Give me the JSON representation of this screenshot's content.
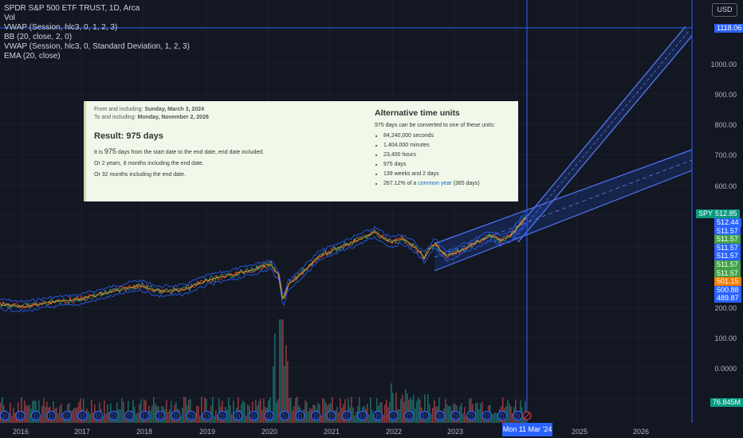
{
  "legend": {
    "symbol": "SPDR S&P 500 ETF TRUST, 1D, Arca",
    "lines": [
      "Vol",
      "VWAP (Session, hlc3, 0, 1, 2, 3)",
      "BB (20, close, 2, 0)",
      "VWAP (Session, hlc3, 0, Standard Deviation, 1, 2, 3)",
      "EMA (20, close)"
    ]
  },
  "currency_button": "USD",
  "price_axis": {
    "labels": [
      "1000.00",
      "900.00",
      "800.00",
      "700.00",
      "600.00",
      "200.00",
      "100.00",
      "0.0000"
    ],
    "top_tag": "1118.06",
    "ticker_tag": "SPY",
    "ticker_price": "512.85",
    "price_tags": [
      {
        "text": "512.44",
        "color": "#2962ff"
      },
      {
        "text": "511.57",
        "color": "#2962ff"
      },
      {
        "text": "511.57",
        "color": "#43a047"
      },
      {
        "text": "511.57",
        "color": "#2962ff"
      },
      {
        "text": "511.57",
        "color": "#2962ff"
      },
      {
        "text": "511.57",
        "color": "#43a047"
      },
      {
        "text": "511.57",
        "color": "#43a047"
      },
      {
        "text": "501.15",
        "color": "#f57c00"
      },
      {
        "text": "500.88",
        "color": "#2962ff"
      },
      {
        "text": "489.87",
        "color": "#2962ff"
      }
    ],
    "volume_tag": "76.845M"
  },
  "time_axis": {
    "labels": [
      "2016",
      "2017",
      "2018",
      "2019",
      "2020",
      "2021",
      "2022",
      "2023",
      "2025",
      "2026"
    ],
    "highlight": "Mon 11 Mar '24"
  },
  "overlay": {
    "from_label": "From and including:",
    "from_date": "Sunday, March 3, 2024",
    "to_label": "To and including:",
    "to_date": "Monday, November 2, 2026",
    "result_title": "Result: 975 days",
    "line1_a": "It is",
    "line1_num": "975",
    "line1_b": "days from the start date to the end date, end date included.",
    "line2": "Or 2 years, 8 months including the end date.",
    "line3": "Or 32 months including the end date.",
    "alt_title": "Alternative time units",
    "alt_intro": "975 days can be converted to one of these units:",
    "alt_items": [
      "84,240,000 seconds",
      "1,404,000 minutes",
      "23,400 hours",
      "975 days",
      "139 weeks and 2 days"
    ],
    "alt_last_a": "267.12% of a",
    "alt_last_link": "common year",
    "alt_last_b": "(365 days)"
  },
  "colors": {
    "background": "#131722",
    "accent_blue": "#2962ff",
    "up_green": "#26a69a",
    "down_red": "#ef5350"
  }
}
